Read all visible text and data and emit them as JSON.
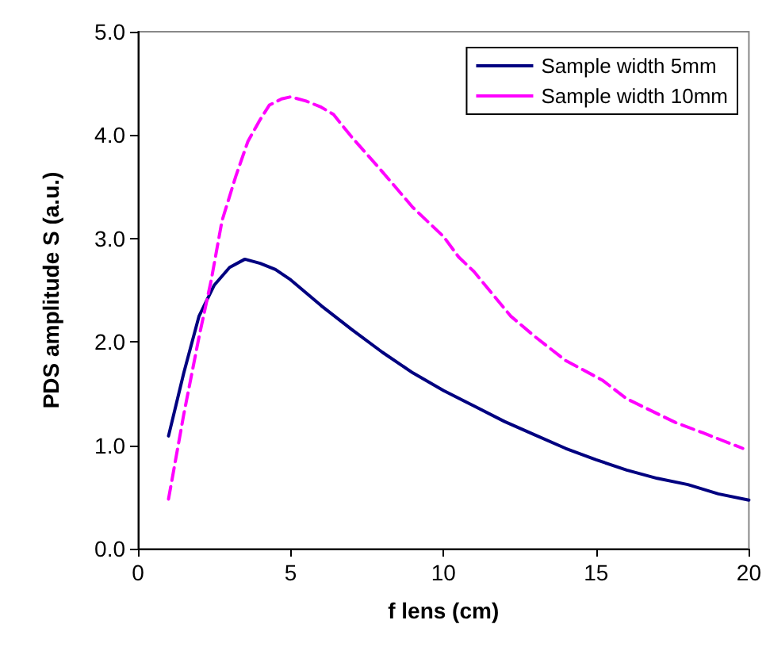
{
  "chart_data": {
    "type": "line",
    "xlabel": "f lens (cm)",
    "ylabel": "PDS amplitude S (a.u.)",
    "xlim": [
      0,
      20
    ],
    "xticks": [
      0,
      5,
      10,
      15,
      20
    ],
    "ylim": [
      0,
      5
    ],
    "yticks": [
      {
        "value": 0,
        "label": "0.0"
      },
      {
        "value": 1,
        "label": "1.0"
      },
      {
        "value": 2,
        "label": "2.0"
      },
      {
        "value": 3,
        "label": "3.0"
      },
      {
        "value": 4,
        "label": "4.0"
      },
      {
        "value": 5,
        "label": "5.0"
      }
    ],
    "grid": false,
    "legend": "top right",
    "marker": "none",
    "series": [
      {
        "name": "Sample width 5mm",
        "color": "#000080",
        "line_style": "solid",
        "x": [
          1,
          1.5,
          2,
          2.5,
          3,
          3.5,
          4,
          4.5,
          5,
          6,
          7,
          8,
          9,
          10,
          11,
          12,
          13,
          14,
          15,
          16,
          17,
          18,
          19,
          20
        ],
        "values": [
          1.09,
          1.7,
          2.25,
          2.55,
          2.72,
          2.8,
          2.76,
          2.7,
          2.6,
          2.35,
          2.12,
          1.9,
          1.7,
          1.53,
          1.38,
          1.23,
          1.1,
          0.97,
          0.86,
          0.76,
          0.68,
          0.62,
          0.53,
          0.47
        ]
      },
      {
        "name": "Sample width 10mm",
        "color": "#ff00ff",
        "line_style": "dashed",
        "x": [
          1,
          1.5,
          2,
          2.4,
          2.75,
          3.2,
          3.6,
          4,
          4.3,
          4.7,
          5,
          5.5,
          6,
          6.4,
          7,
          7.9,
          9,
          10,
          10.5,
          11,
          12.2,
          13,
          14,
          15.2,
          16,
          17.6,
          18.5,
          19.8
        ],
        "values": [
          0.48,
          1.3,
          2.05,
          2.6,
          3.17,
          3.6,
          3.94,
          4.15,
          4.29,
          4.35,
          4.37,
          4.33,
          4.27,
          4.2,
          3.98,
          3.68,
          3.3,
          3.02,
          2.82,
          2.68,
          2.25,
          2.05,
          1.82,
          1.63,
          1.45,
          1.22,
          1.12,
          0.97
        ]
      }
    ]
  }
}
